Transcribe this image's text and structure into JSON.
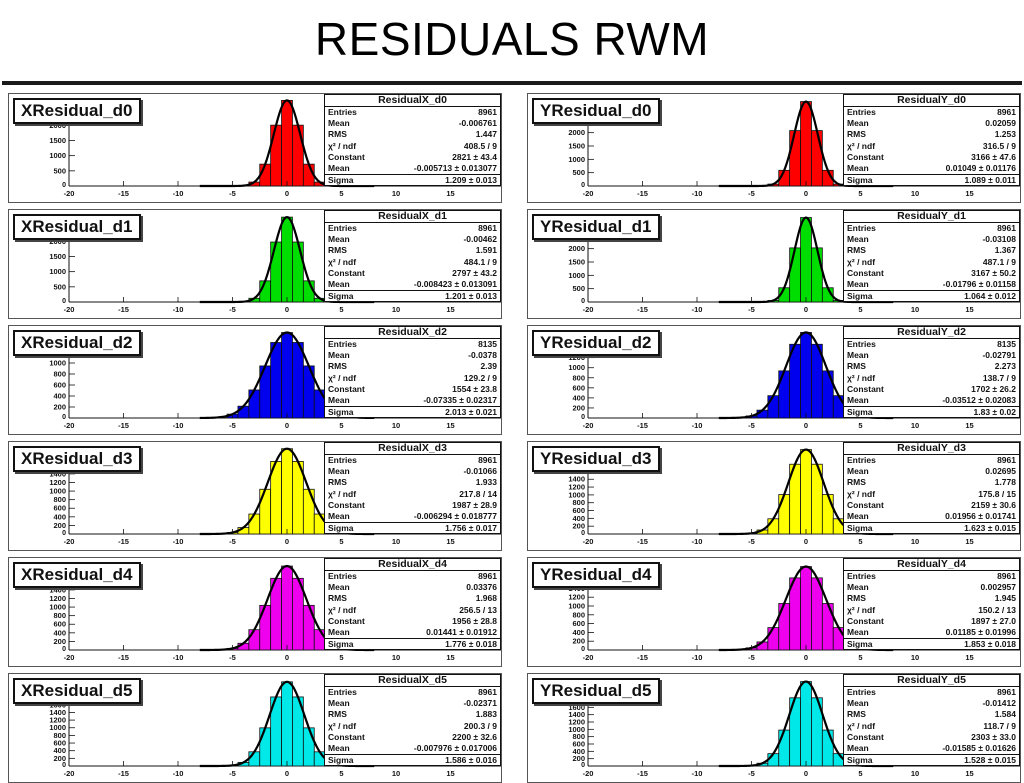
{
  "page": {
    "title": "RESIDUALS RWM"
  },
  "stat_labels": [
    "Entries",
    "Mean",
    "RMS",
    "χ² / ndf",
    "Constant",
    "Mean",
    "Sigma"
  ],
  "chart_data": [
    {
      "type": "bar",
      "name": "XResidual_d0",
      "stat_title": "ResidualX_d0",
      "color": "#ff0000",
      "stats": [
        "8961",
        "-0.006761",
        "1.447",
        "408.5 / 9",
        "2821 ± 43.4",
        "-0.005713 ± 0.013077",
        "1.209 ± 0.013"
      ],
      "xlim": [
        -20,
        20
      ],
      "xticks": [
        -20,
        -15,
        -10,
        -5,
        0,
        5,
        10,
        15,
        20
      ],
      "ylim": [
        0,
        2900
      ],
      "yticks": [
        500,
        1000,
        1500,
        2000
      ],
      "mean": 0,
      "sigma": 1.21,
      "peak": 2821
    },
    {
      "type": "bar",
      "name": "YResidual_d0",
      "stat_title": "ResidualY_d0",
      "color": "#ff0000",
      "stats": [
        "8961",
        "0.02059",
        "1.253",
        "316.5 / 9",
        "3166 ± 47.6",
        "0.01049 ± 0.01176",
        "1.089 ± 0.011"
      ],
      "xlim": [
        -20,
        20
      ],
      "xticks": [
        -20,
        -15,
        -10,
        -5,
        0,
        5,
        10,
        15,
        20
      ],
      "ylim": [
        0,
        3300
      ],
      "yticks": [
        500,
        1000,
        1500,
        2000
      ],
      "mean": 0,
      "sigma": 1.09,
      "peak": 3166
    },
    {
      "type": "bar",
      "name": "XResidual_d1",
      "stat_title": "ResidualX_d1",
      "color": "#00dd00",
      "stats": [
        "8961",
        "-0.00462",
        "1.591",
        "484.1 / 9",
        "2797 ± 43.2",
        "-0.008423 ± 0.013091",
        "1.201 ± 0.013"
      ],
      "xlim": [
        -20,
        20
      ],
      "xticks": [
        -20,
        -15,
        -10,
        -5,
        0,
        5,
        10,
        15,
        20
      ],
      "ylim": [
        0,
        2900
      ],
      "yticks": [
        500,
        1000,
        1500,
        2000
      ],
      "mean": 0,
      "sigma": 1.2,
      "peak": 2797
    },
    {
      "type": "bar",
      "name": "YResidual_d1",
      "stat_title": "ResidualY_d1",
      "color": "#00dd00",
      "stats": [
        "8961",
        "-0.03108",
        "1.367",
        "487.1 / 9",
        "3167 ± 50.2",
        "-0.01796 ± 0.01158",
        "1.064 ± 0.012"
      ],
      "xlim": [
        -20,
        20
      ],
      "xticks": [
        -20,
        -15,
        -10,
        -5,
        0,
        5,
        10,
        15,
        20
      ],
      "ylim": [
        0,
        3300
      ],
      "yticks": [
        500,
        1000,
        1500,
        2000
      ],
      "mean": 0,
      "sigma": 1.06,
      "peak": 3167
    },
    {
      "type": "bar",
      "name": "XResidual_d2",
      "stat_title": "ResidualX_d2",
      "color": "#0000ee",
      "stats": [
        "8135",
        "-0.0378",
        "2.39",
        "129.2 / 9",
        "1554 ± 23.8",
        "-0.07335 ± 0.02317",
        "2.013 ± 0.021"
      ],
      "xlim": [
        -20,
        20
      ],
      "xticks": [
        -20,
        -15,
        -10,
        -5,
        0,
        5,
        10,
        15,
        20
      ],
      "ylim": [
        0,
        1600
      ],
      "yticks": [
        200,
        400,
        600,
        800,
        1000,
        1200
      ],
      "mean": 0,
      "sigma": 2.01,
      "peak": 1554
    },
    {
      "type": "bar",
      "name": "YResidual_d2",
      "stat_title": "ResidualY_d2",
      "color": "#0000ee",
      "stats": [
        "8135",
        "-0.02791",
        "2.273",
        "138.7 / 9",
        "1702 ± 26.2",
        "-0.03512 ± 0.02083",
        "1.83 ± 0.02"
      ],
      "xlim": [
        -20,
        20
      ],
      "xticks": [
        -20,
        -15,
        -10,
        -5,
        0,
        5,
        10,
        15,
        20
      ],
      "ylim": [
        0,
        1750
      ],
      "yticks": [
        200,
        400,
        600,
        800,
        1000,
        1200
      ],
      "mean": 0,
      "sigma": 1.83,
      "peak": 1702
    },
    {
      "type": "bar",
      "name": "XResidual_d3",
      "stat_title": "ResidualX_d3",
      "color": "#ffff00",
      "stats": [
        "8961",
        "-0.01066",
        "1.933",
        "217.8 / 14",
        "1987 ± 28.9",
        "-0.006294 ± 0.018777",
        "1.756 ± 0.017"
      ],
      "xlim": [
        -20,
        20
      ],
      "xticks": [
        -20,
        -15,
        -10,
        -5,
        0,
        5,
        10,
        15,
        20
      ],
      "ylim": [
        0,
        2050
      ],
      "yticks": [
        200,
        400,
        600,
        800,
        1000,
        1200,
        1400,
        1600,
        1800
      ],
      "mean": 0,
      "sigma": 1.76,
      "peak": 1987
    },
    {
      "type": "bar",
      "name": "YResidual_d3",
      "stat_title": "ResidualY_d3",
      "color": "#ffff00",
      "stats": [
        "8961",
        "0.02695",
        "1.778",
        "175.8 / 15",
        "2159 ± 30.6",
        "0.01956 ± 0.01741",
        "1.623 ± 0.015"
      ],
      "xlim": [
        -20,
        20
      ],
      "xticks": [
        -20,
        -15,
        -10,
        -5,
        0,
        5,
        10,
        15,
        20
      ],
      "ylim": [
        0,
        2250
      ],
      "yticks": [
        200,
        400,
        600,
        800,
        1000,
        1200,
        1400,
        1600,
        1800
      ],
      "mean": 0,
      "sigma": 1.62,
      "peak": 2159
    },
    {
      "type": "bar",
      "name": "XResidual_d4",
      "stat_title": "ResidualX_d4",
      "color": "#ee00ee",
      "stats": [
        "8961",
        "0.03376",
        "1.968",
        "256.5 / 13",
        "1956 ± 28.8",
        "0.01441 ± 0.01912",
        "1.776 ± 0.018"
      ],
      "xlim": [
        -20,
        20
      ],
      "xticks": [
        -20,
        -15,
        -10,
        -5,
        0,
        5,
        10,
        15,
        20
      ],
      "ylim": [
        0,
        2050
      ],
      "yticks": [
        200,
        400,
        600,
        800,
        1000,
        1200,
        1400
      ],
      "mean": 0,
      "sigma": 1.78,
      "peak": 1956
    },
    {
      "type": "bar",
      "name": "YResidual_d4",
      "stat_title": "ResidualY_d4",
      "color": "#ee00ee",
      "stats": [
        "8961",
        "0.002957",
        "1.945",
        "150.2 / 13",
        "1897 ± 27.0",
        "0.01185 ± 0.01996",
        "1.853 ± 0.018"
      ],
      "xlim": [
        -20,
        20
      ],
      "xticks": [
        -20,
        -15,
        -10,
        -5,
        0,
        5,
        10,
        15,
        20
      ],
      "ylim": [
        0,
        2000
      ],
      "yticks": [
        200,
        400,
        600,
        800,
        1000,
        1200,
        1400
      ],
      "mean": 0,
      "sigma": 1.85,
      "peak": 1897
    },
    {
      "type": "bar",
      "name": "XResidual_d5",
      "stat_title": "ResidualX_d5",
      "color": "#00e8e8",
      "stats": [
        "8961",
        "-0.02371",
        "1.883",
        "200.3 / 9",
        "2200 ± 32.6",
        "-0.007976 ± 0.017006",
        "1.586 ± 0.016"
      ],
      "xlim": [
        -20,
        20
      ],
      "xticks": [
        -20,
        -15,
        -10,
        -5,
        0,
        5,
        10,
        15,
        20
      ],
      "ylim": [
        0,
        2300
      ],
      "yticks": [
        200,
        400,
        600,
        800,
        1000,
        1200,
        1400,
        1600,
        1800
      ],
      "mean": 0,
      "sigma": 1.59,
      "peak": 2200
    },
    {
      "type": "bar",
      "name": "YResidual_d5",
      "stat_title": "ResidualY_d5",
      "color": "#00e8e8",
      "stats": [
        "8961",
        "-0.01412",
        "1.584",
        "118.7 / 9",
        "2303 ± 33.0",
        "-0.01585 ± 0.01626",
        "1.528 ± 0.015"
      ],
      "xlim": [
        -20,
        20
      ],
      "xticks": [
        -20,
        -15,
        -10,
        -5,
        0,
        5,
        10,
        15,
        20
      ],
      "ylim": [
        0,
        2400
      ],
      "yticks": [
        200,
        400,
        600,
        800,
        1000,
        1200,
        1400,
        1600,
        1800
      ],
      "mean": 0,
      "sigma": 1.53,
      "peak": 2303
    }
  ]
}
